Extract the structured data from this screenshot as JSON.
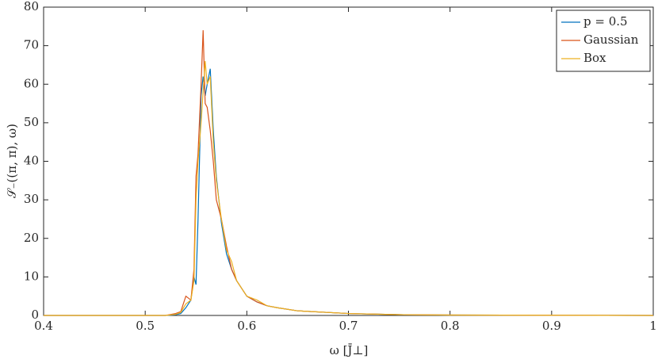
{
  "chart_data": {
    "type": "line",
    "xlabel": "ω [J̄⊥]",
    "ylabel": "𝒮₋((π, π), ω)",
    "x": [
      0.4,
      0.45,
      0.5,
      0.52,
      0.53,
      0.535,
      0.54,
      0.545,
      0.548,
      0.55,
      0.552,
      0.555,
      0.557,
      0.559,
      0.561,
      0.564,
      0.567,
      0.57,
      0.575,
      0.58,
      0.585,
      0.59,
      0.6,
      0.61,
      0.62,
      0.63,
      0.65,
      0.7,
      0.75,
      0.8,
      0.9,
      1.0
    ],
    "series": [
      {
        "name": "p = 0.5",
        "color": "#0072bd",
        "values": [
          0,
          0,
          0,
          0,
          0.2,
          0.5,
          2,
          4,
          10,
          8,
          25,
          57,
          62,
          57,
          60,
          64,
          48,
          36,
          24,
          16,
          12,
          9,
          5,
          3.5,
          2.5,
          2,
          1.2,
          0.5,
          0.2,
          0.1,
          0.05,
          0
        ]
      },
      {
        "name": "Gaussian",
        "color": "#d95319",
        "values": [
          0,
          0,
          0,
          0,
          0.5,
          1,
          5,
          4,
          12,
          36,
          42,
          60,
          74,
          55,
          54,
          48,
          40,
          30,
          25,
          18,
          12,
          9,
          5,
          3.5,
          2.5,
          2,
          1.2,
          0.5,
          0.2,
          0.1,
          0.05,
          0
        ]
      },
      {
        "name": "Box",
        "color": "#edb120",
        "values": [
          0,
          0,
          0,
          0,
          0.3,
          0.8,
          3,
          4,
          9,
          30,
          40,
          50,
          58,
          66,
          60,
          62,
          45,
          35,
          25,
          17,
          14,
          9,
          5,
          4,
          2.5,
          2,
          1.2,
          0.5,
          0.2,
          0.1,
          0.05,
          0
        ]
      }
    ],
    "xlim": [
      0.4,
      1
    ],
    "xticks": [
      0.4,
      0.5,
      0.6,
      0.7,
      0.8,
      0.9,
      1
    ],
    "ylim": [
      0,
      80
    ],
    "yticks": [
      0,
      10,
      20,
      30,
      40,
      50,
      60,
      70,
      80
    ],
    "grid": false,
    "legend": "northeast"
  }
}
